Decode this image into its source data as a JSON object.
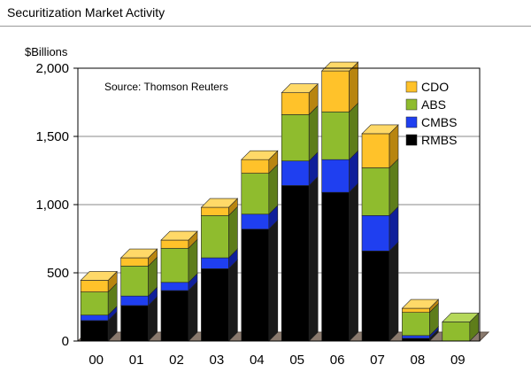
{
  "header": {
    "title": "Securitization Market Activity"
  },
  "chart_data": {
    "type": "bar",
    "stacked": true,
    "ylabel": "$Billions",
    "annotation": "Source: Thomson Reuters",
    "ylim": [
      0,
      2000
    ],
    "yticks": [
      0,
      500,
      1000,
      1500,
      2000
    ],
    "ytick_labels": [
      "0",
      "500",
      "1,000",
      "1,500",
      "2,000"
    ],
    "categories": [
      "00",
      "01",
      "02",
      "03",
      "04",
      "05",
      "06",
      "07",
      "08",
      "09"
    ],
    "grid": true,
    "legend_position": "top-right",
    "series": [
      {
        "name": "RMBS",
        "color": "#000000",
        "side_color": "#1a1a1a",
        "top_color": "#333333",
        "values": [
          150,
          260,
          370,
          530,
          820,
          1140,
          1090,
          660,
          20,
          0
        ]
      },
      {
        "name": "CMBS",
        "color": "#1f3ff0",
        "side_color": "#0f1f9a",
        "top_color": "#5a78ff",
        "values": [
          40,
          70,
          60,
          80,
          110,
          180,
          240,
          260,
          20,
          0
        ]
      },
      {
        "name": "ABS",
        "color": "#8fbc2e",
        "side_color": "#5e7d1a",
        "top_color": "#b5d85a",
        "values": [
          170,
          220,
          250,
          310,
          300,
          340,
          350,
          350,
          170,
          140
        ]
      },
      {
        "name": "CDO",
        "color": "#ffc22a",
        "side_color": "#b88510",
        "top_color": "#ffd968",
        "values": [
          85,
          60,
          60,
          60,
          100,
          160,
          300,
          250,
          30,
          0
        ]
      }
    ],
    "legend_order": [
      "CDO",
      "ABS",
      "CMBS",
      "RMBS"
    ]
  }
}
